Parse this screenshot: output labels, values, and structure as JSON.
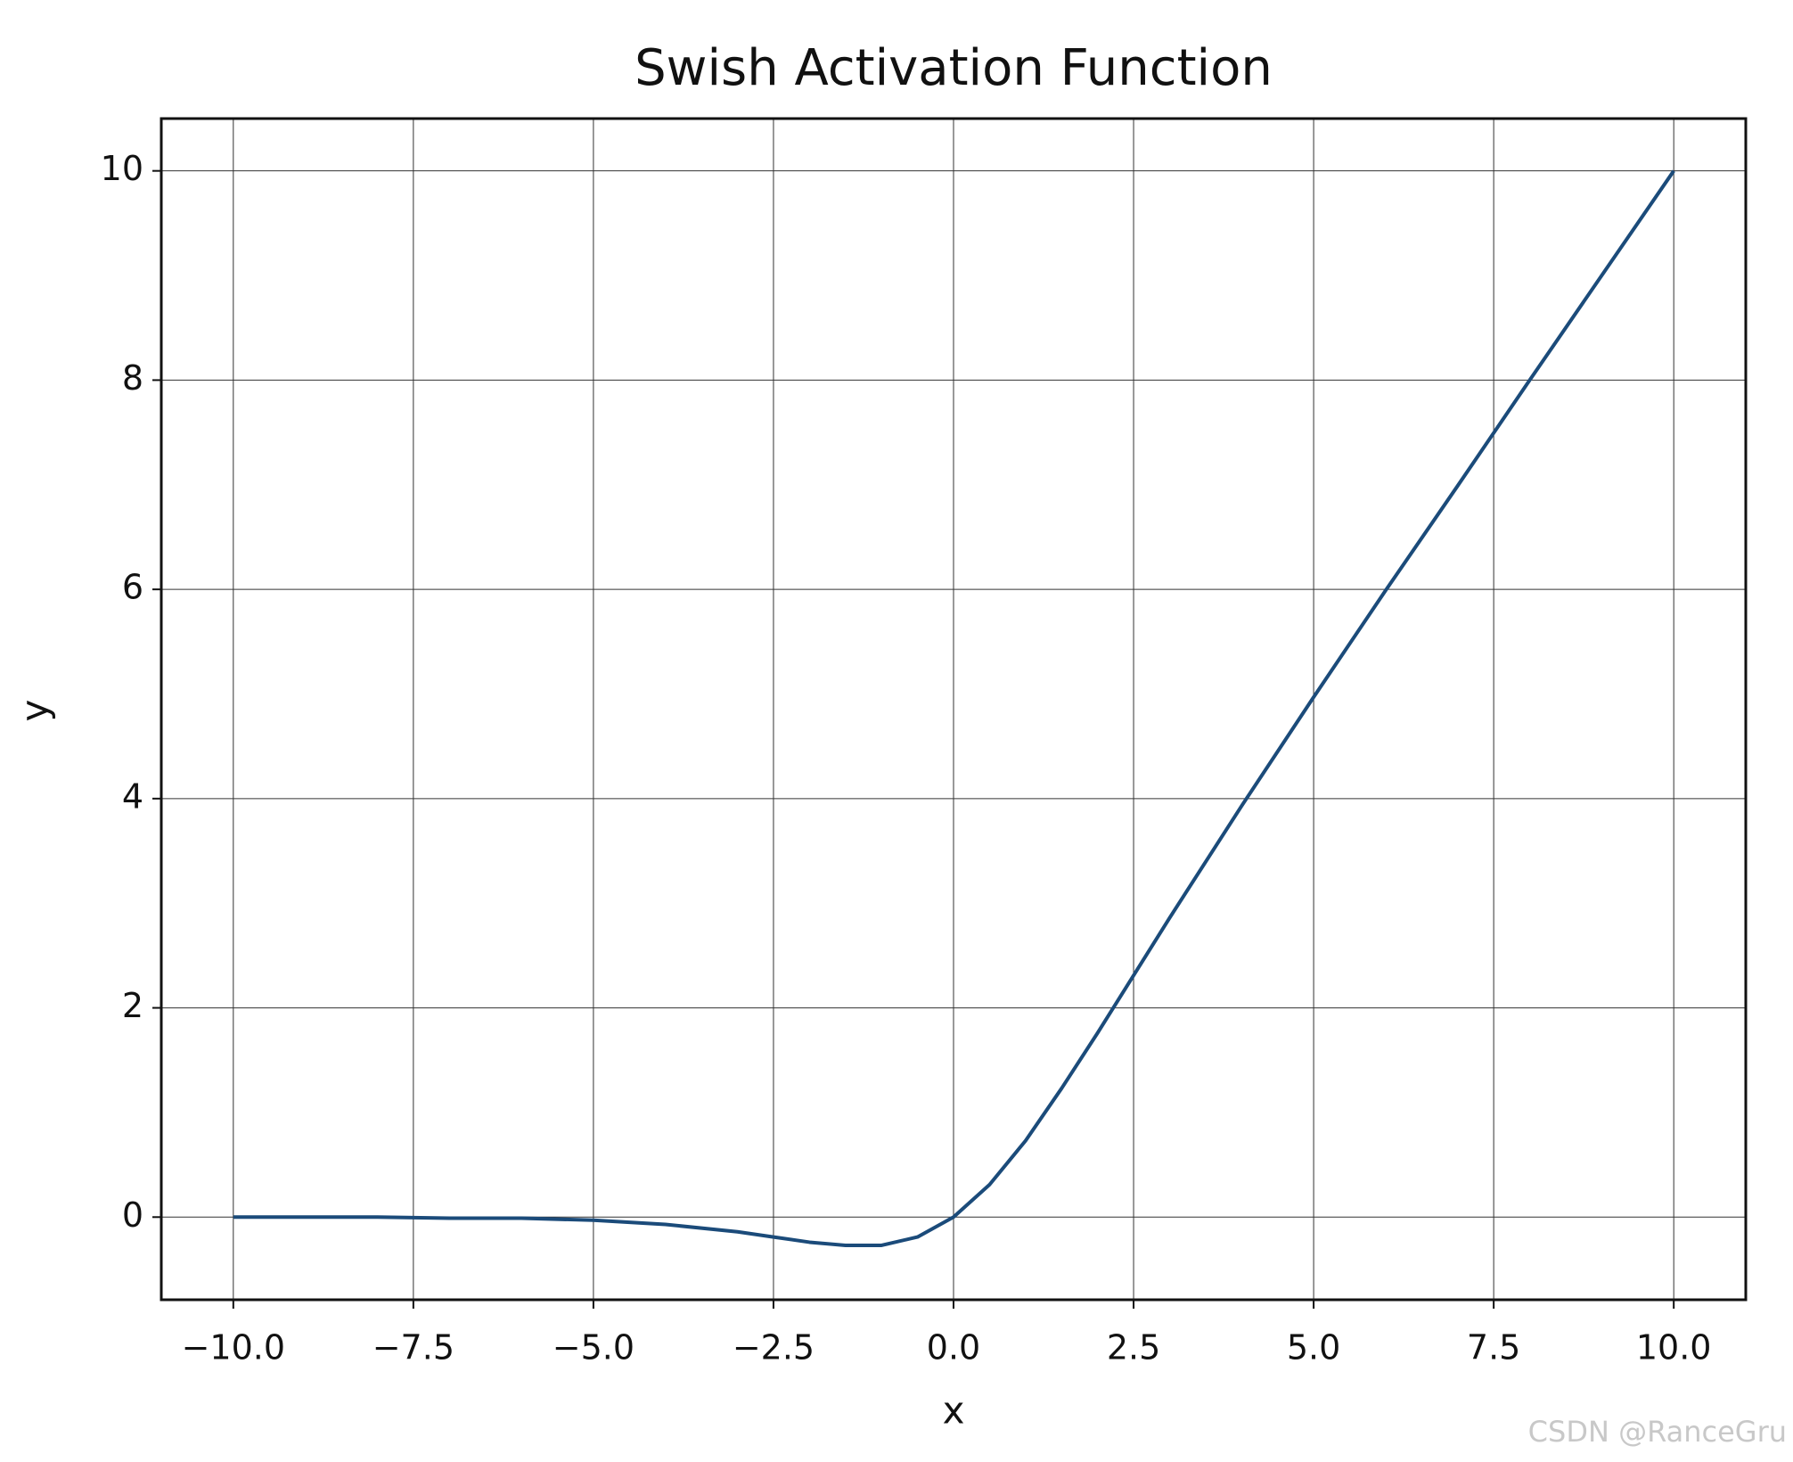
{
  "chart_data": {
    "type": "line",
    "title": "Swish Activation Function",
    "x_label": "x",
    "y_label": "y",
    "x": [
      -10,
      -9,
      -8,
      -7,
      -6,
      -5,
      -4,
      -3,
      -2.5,
      -2,
      -1.5,
      -1,
      -0.5,
      0,
      0.5,
      1,
      1.5,
      2,
      2.5,
      3,
      4,
      5,
      6,
      7,
      8,
      9,
      10
    ],
    "values": [
      0,
      0,
      0,
      -0.01,
      -0.01,
      -0.03,
      -0.07,
      -0.14,
      -0.19,
      -0.24,
      -0.27,
      -0.27,
      -0.19,
      0,
      0.31,
      0.73,
      1.23,
      1.76,
      2.31,
      2.86,
      3.93,
      4.97,
      5.99,
      6.99,
      8,
      9,
      10
    ],
    "color": "#1b4b7a",
    "xlim": [
      -11,
      11
    ],
    "ylim": [
      -0.79,
      10.5
    ],
    "xticks": [
      {
        "value": -10,
        "label": "−10.0"
      },
      {
        "value": -7.5,
        "label": "−7.5"
      },
      {
        "value": -5,
        "label": "−5.0"
      },
      {
        "value": -2.5,
        "label": "−2.5"
      },
      {
        "value": 0,
        "label": "0.0"
      },
      2.5,
      {
        "value": 5,
        "label": "5.0"
      },
      7.5,
      {
        "value": 10,
        "label": "10.0"
      }
    ],
    "yticks": [
      0,
      2,
      4,
      6,
      8,
      10
    ],
    "grid": true,
    "watermark": "CSDN @RanceGru"
  }
}
